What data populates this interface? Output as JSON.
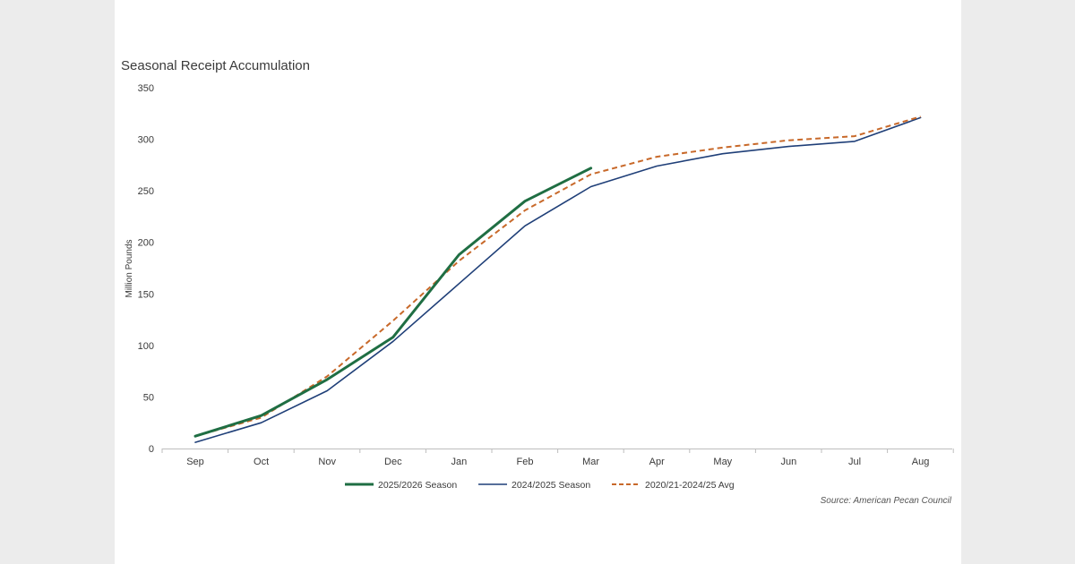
{
  "chart_data": {
    "type": "line",
    "title": "Seasonal Receipt Accumulation",
    "ylabel": "Million Pounds",
    "xlabel": "",
    "categories": [
      "Sep",
      "Oct",
      "Nov",
      "Dec",
      "Jan",
      "Feb",
      "Mar",
      "Apr",
      "May",
      "Jun",
      "Jul",
      "Aug"
    ],
    "ylim": [
      0,
      350
    ],
    "yticks": [
      "0",
      "50",
      "100",
      "150",
      "200",
      "250",
      "300",
      "350"
    ],
    "grid": false,
    "legend_position": "bottom",
    "series": [
      {
        "name": "2025/2026 Season",
        "color": "#1f6e43",
        "style": "solid-thick",
        "values": [
          12,
          32,
          67,
          108,
          188,
          240,
          272,
          null,
          null,
          null,
          null,
          null
        ]
      },
      {
        "name": "2024/2025 Season",
        "color": "#1f3f78",
        "style": "solid",
        "values": [
          6,
          25,
          56,
          104,
          160,
          216,
          254,
          274,
          286,
          293,
          298,
          321
        ]
      },
      {
        "name": "2020/21-2024/25 Avg",
        "color": "#c8692a",
        "style": "dashed",
        "values": [
          12,
          30,
          70,
          124,
          182,
          231,
          266,
          283,
          292,
          299,
          303,
          322
        ]
      }
    ],
    "source": "Source: American Pecan Council"
  }
}
